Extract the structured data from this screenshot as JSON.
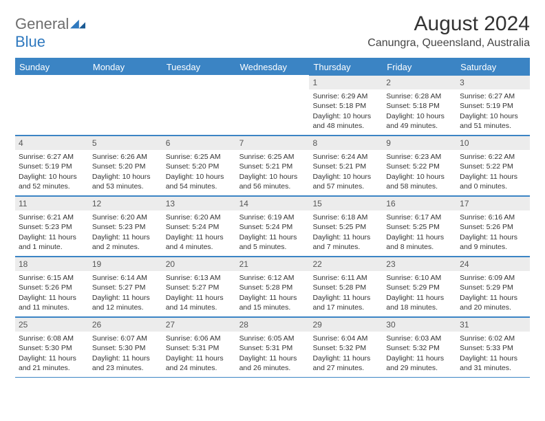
{
  "logo": {
    "text1": "General",
    "text2": "Blue"
  },
  "header": {
    "month_title": "August 2024",
    "location": "Canungra, Queensland, Australia"
  },
  "colors": {
    "accent": "#3b84c4",
    "header_text": "#ffffff",
    "num_bg": "#ececec",
    "body_text": "#333333"
  },
  "day_names": [
    "Sunday",
    "Monday",
    "Tuesday",
    "Wednesday",
    "Thursday",
    "Friday",
    "Saturday"
  ],
  "weeks": [
    [
      {
        "n": "",
        "sr": "",
        "ss": "",
        "dl": ""
      },
      {
        "n": "",
        "sr": "",
        "ss": "",
        "dl": ""
      },
      {
        "n": "",
        "sr": "",
        "ss": "",
        "dl": ""
      },
      {
        "n": "",
        "sr": "",
        "ss": "",
        "dl": ""
      },
      {
        "n": "1",
        "sr": "Sunrise: 6:29 AM",
        "ss": "Sunset: 5:18 PM",
        "dl": "Daylight: 10 hours and 48 minutes."
      },
      {
        "n": "2",
        "sr": "Sunrise: 6:28 AM",
        "ss": "Sunset: 5:18 PM",
        "dl": "Daylight: 10 hours and 49 minutes."
      },
      {
        "n": "3",
        "sr": "Sunrise: 6:27 AM",
        "ss": "Sunset: 5:19 PM",
        "dl": "Daylight: 10 hours and 51 minutes."
      }
    ],
    [
      {
        "n": "4",
        "sr": "Sunrise: 6:27 AM",
        "ss": "Sunset: 5:19 PM",
        "dl": "Daylight: 10 hours and 52 minutes."
      },
      {
        "n": "5",
        "sr": "Sunrise: 6:26 AM",
        "ss": "Sunset: 5:20 PM",
        "dl": "Daylight: 10 hours and 53 minutes."
      },
      {
        "n": "6",
        "sr": "Sunrise: 6:25 AM",
        "ss": "Sunset: 5:20 PM",
        "dl": "Daylight: 10 hours and 54 minutes."
      },
      {
        "n": "7",
        "sr": "Sunrise: 6:25 AM",
        "ss": "Sunset: 5:21 PM",
        "dl": "Daylight: 10 hours and 56 minutes."
      },
      {
        "n": "8",
        "sr": "Sunrise: 6:24 AM",
        "ss": "Sunset: 5:21 PM",
        "dl": "Daylight: 10 hours and 57 minutes."
      },
      {
        "n": "9",
        "sr": "Sunrise: 6:23 AM",
        "ss": "Sunset: 5:22 PM",
        "dl": "Daylight: 10 hours and 58 minutes."
      },
      {
        "n": "10",
        "sr": "Sunrise: 6:22 AM",
        "ss": "Sunset: 5:22 PM",
        "dl": "Daylight: 11 hours and 0 minutes."
      }
    ],
    [
      {
        "n": "11",
        "sr": "Sunrise: 6:21 AM",
        "ss": "Sunset: 5:23 PM",
        "dl": "Daylight: 11 hours and 1 minute."
      },
      {
        "n": "12",
        "sr": "Sunrise: 6:20 AM",
        "ss": "Sunset: 5:23 PM",
        "dl": "Daylight: 11 hours and 2 minutes."
      },
      {
        "n": "13",
        "sr": "Sunrise: 6:20 AM",
        "ss": "Sunset: 5:24 PM",
        "dl": "Daylight: 11 hours and 4 minutes."
      },
      {
        "n": "14",
        "sr": "Sunrise: 6:19 AM",
        "ss": "Sunset: 5:24 PM",
        "dl": "Daylight: 11 hours and 5 minutes."
      },
      {
        "n": "15",
        "sr": "Sunrise: 6:18 AM",
        "ss": "Sunset: 5:25 PM",
        "dl": "Daylight: 11 hours and 7 minutes."
      },
      {
        "n": "16",
        "sr": "Sunrise: 6:17 AM",
        "ss": "Sunset: 5:25 PM",
        "dl": "Daylight: 11 hours and 8 minutes."
      },
      {
        "n": "17",
        "sr": "Sunrise: 6:16 AM",
        "ss": "Sunset: 5:26 PM",
        "dl": "Daylight: 11 hours and 9 minutes."
      }
    ],
    [
      {
        "n": "18",
        "sr": "Sunrise: 6:15 AM",
        "ss": "Sunset: 5:26 PM",
        "dl": "Daylight: 11 hours and 11 minutes."
      },
      {
        "n": "19",
        "sr": "Sunrise: 6:14 AM",
        "ss": "Sunset: 5:27 PM",
        "dl": "Daylight: 11 hours and 12 minutes."
      },
      {
        "n": "20",
        "sr": "Sunrise: 6:13 AM",
        "ss": "Sunset: 5:27 PM",
        "dl": "Daylight: 11 hours and 14 minutes."
      },
      {
        "n": "21",
        "sr": "Sunrise: 6:12 AM",
        "ss": "Sunset: 5:28 PM",
        "dl": "Daylight: 11 hours and 15 minutes."
      },
      {
        "n": "22",
        "sr": "Sunrise: 6:11 AM",
        "ss": "Sunset: 5:28 PM",
        "dl": "Daylight: 11 hours and 17 minutes."
      },
      {
        "n": "23",
        "sr": "Sunrise: 6:10 AM",
        "ss": "Sunset: 5:29 PM",
        "dl": "Daylight: 11 hours and 18 minutes."
      },
      {
        "n": "24",
        "sr": "Sunrise: 6:09 AM",
        "ss": "Sunset: 5:29 PM",
        "dl": "Daylight: 11 hours and 20 minutes."
      }
    ],
    [
      {
        "n": "25",
        "sr": "Sunrise: 6:08 AM",
        "ss": "Sunset: 5:30 PM",
        "dl": "Daylight: 11 hours and 21 minutes."
      },
      {
        "n": "26",
        "sr": "Sunrise: 6:07 AM",
        "ss": "Sunset: 5:30 PM",
        "dl": "Daylight: 11 hours and 23 minutes."
      },
      {
        "n": "27",
        "sr": "Sunrise: 6:06 AM",
        "ss": "Sunset: 5:31 PM",
        "dl": "Daylight: 11 hours and 24 minutes."
      },
      {
        "n": "28",
        "sr": "Sunrise: 6:05 AM",
        "ss": "Sunset: 5:31 PM",
        "dl": "Daylight: 11 hours and 26 minutes."
      },
      {
        "n": "29",
        "sr": "Sunrise: 6:04 AM",
        "ss": "Sunset: 5:32 PM",
        "dl": "Daylight: 11 hours and 27 minutes."
      },
      {
        "n": "30",
        "sr": "Sunrise: 6:03 AM",
        "ss": "Sunset: 5:32 PM",
        "dl": "Daylight: 11 hours and 29 minutes."
      },
      {
        "n": "31",
        "sr": "Sunrise: 6:02 AM",
        "ss": "Sunset: 5:33 PM",
        "dl": "Daylight: 11 hours and 31 minutes."
      }
    ]
  ]
}
